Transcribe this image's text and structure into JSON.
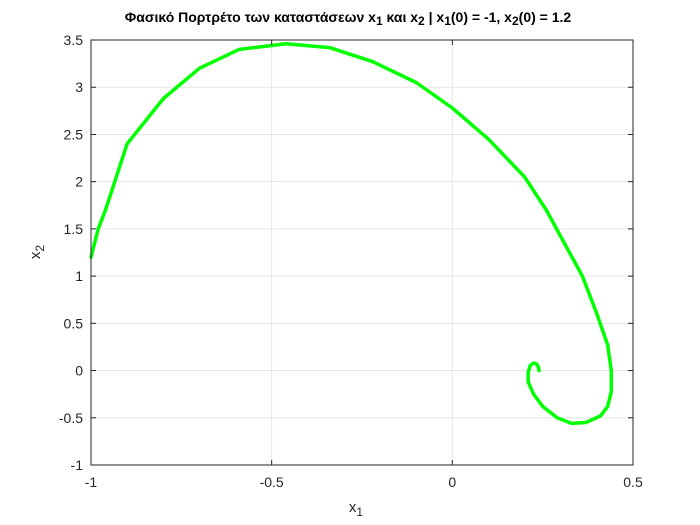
{
  "chart_data": {
    "type": "line",
    "title": {
      "prefix": "Φασικό Πορτρέτο των καταστάσεων x",
      "sub1": "1",
      "mid1": " και x",
      "sub2": "2",
      "mid2": " | x",
      "sub3": "1",
      "mid3": "(0) = -1, x",
      "sub4": "2",
      "suffix": "(0) = 1.2"
    },
    "xlabel": {
      "base": "x",
      "sub": "1"
    },
    "ylabel": {
      "base": "x",
      "sub": "2"
    },
    "xlim": [
      -1,
      0.5
    ],
    "ylim": [
      -1,
      3.5
    ],
    "xticks": [
      -1,
      -0.5,
      0,
      0.5
    ],
    "xtick_labels": [
      "-1",
      "-0.5",
      "0",
      "0.5"
    ],
    "yticks": [
      -1,
      -0.5,
      0,
      0.5,
      1,
      1.5,
      2,
      2.5,
      3,
      3.5
    ],
    "ytick_labels": [
      "-1",
      "-0.5",
      "0",
      "0.5",
      "1",
      "1.5",
      "2",
      "2.5",
      "3",
      "3.5"
    ],
    "grid": true,
    "colors": {
      "line": "#00ff00",
      "grid": "#e5e5e5",
      "axis": "#262626"
    },
    "series": [
      {
        "points": [
          [
            -1.0,
            1.2
          ],
          [
            -0.98,
            1.5
          ],
          [
            -0.96,
            1.7
          ],
          [
            -0.93,
            2.05
          ],
          [
            -0.9,
            2.4
          ],
          [
            -0.8,
            2.88
          ],
          [
            -0.7,
            3.2
          ],
          [
            -0.59,
            3.4
          ],
          [
            -0.46,
            3.46
          ],
          [
            -0.34,
            3.42
          ],
          [
            -0.22,
            3.27
          ],
          [
            -0.1,
            3.05
          ],
          [
            0.0,
            2.78
          ],
          [
            0.1,
            2.45
          ],
          [
            0.2,
            2.05
          ],
          [
            0.26,
            1.7
          ],
          [
            0.31,
            1.35
          ],
          [
            0.36,
            1.0
          ],
          [
            0.4,
            0.6
          ],
          [
            0.43,
            0.27
          ],
          [
            0.44,
            0.0
          ],
          [
            0.44,
            -0.22
          ],
          [
            0.43,
            -0.38
          ],
          [
            0.41,
            -0.48
          ],
          [
            0.37,
            -0.55
          ],
          [
            0.33,
            -0.56
          ],
          [
            0.29,
            -0.5
          ],
          [
            0.25,
            -0.38
          ],
          [
            0.225,
            -0.25
          ],
          [
            0.21,
            -0.12
          ],
          [
            0.21,
            -0.02
          ],
          [
            0.215,
            0.05
          ],
          [
            0.225,
            0.08
          ],
          [
            0.233,
            0.07
          ],
          [
            0.238,
            0.04
          ],
          [
            0.24,
            0.0
          ]
        ]
      }
    ]
  }
}
